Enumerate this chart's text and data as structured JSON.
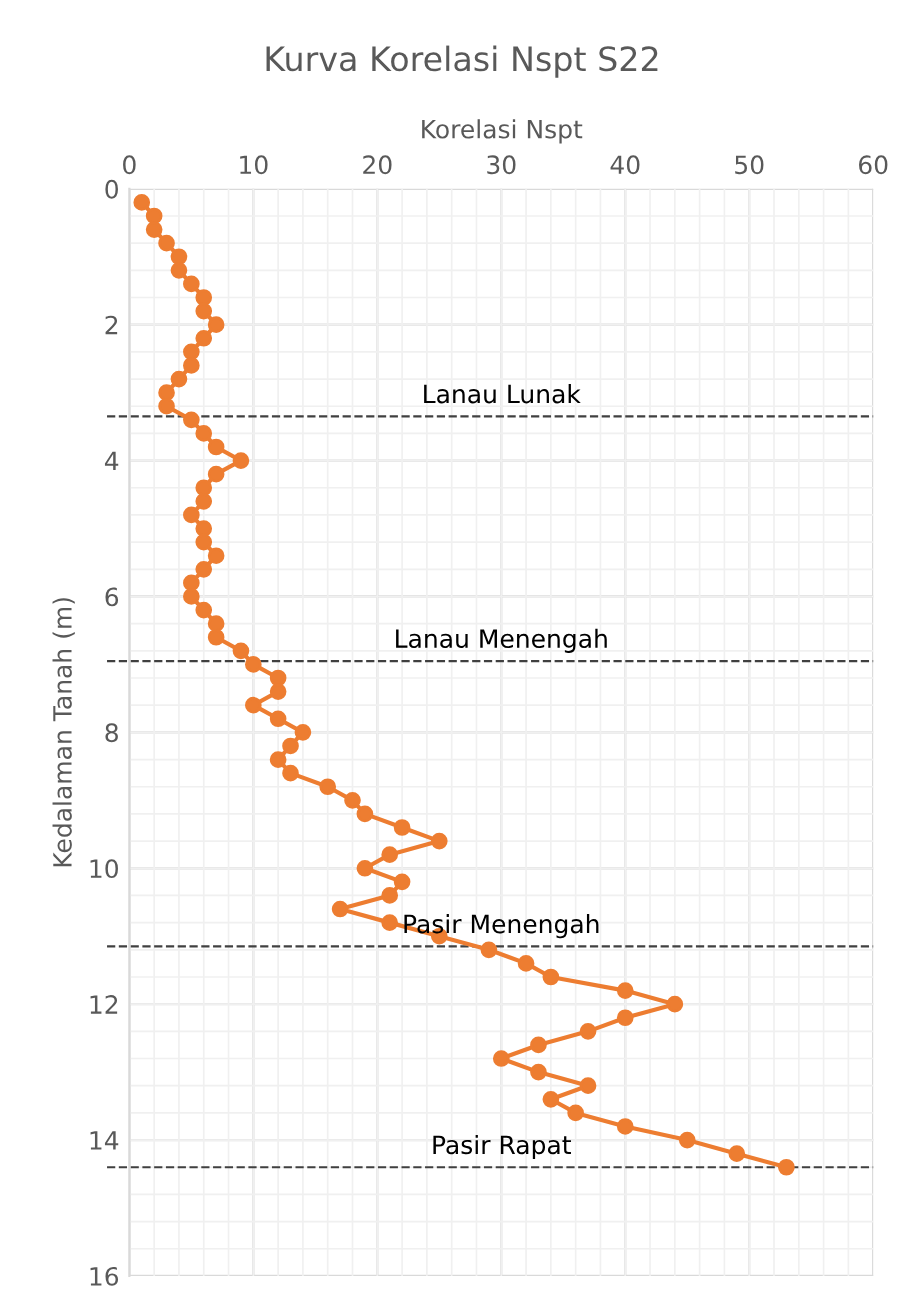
{
  "chart_data": {
    "type": "line",
    "title": "Kurva Korelasi Nspt S22",
    "xlabel": "Korelasi Nspt",
    "ylabel": "Kedalaman Tanah (m)",
    "x": [
      1,
      2,
      2,
      3,
      4,
      4,
      5,
      6,
      6,
      7,
      6,
      5,
      5,
      4,
      3,
      3,
      5,
      6,
      7,
      9,
      7,
      6,
      6,
      5,
      6,
      6,
      7,
      6,
      5,
      5,
      6,
      7,
      7,
      9,
      10,
      12,
      12,
      10,
      12,
      14,
      13,
      12,
      13,
      16,
      18,
      19,
      22,
      25,
      21,
      19,
      22,
      21,
      17,
      21,
      25,
      29,
      32,
      34,
      40,
      44,
      40,
      37,
      33,
      30,
      33,
      37,
      34,
      36,
      40,
      45,
      49,
      53
    ],
    "values": [
      0.2,
      0.4,
      0.6,
      0.8,
      1.0,
      1.2,
      1.4,
      1.6,
      1.8,
      2.0,
      2.2,
      2.4,
      2.6,
      2.8,
      3.0,
      3.2,
      3.4,
      3.6,
      3.8,
      4.0,
      4.2,
      4.4,
      4.6,
      4.8,
      5.0,
      5.2,
      5.4,
      5.6,
      5.8,
      6.0,
      6.2,
      6.4,
      6.6,
      6.8,
      7.0,
      7.2,
      7.4,
      7.6,
      7.8,
      8.0,
      8.2,
      8.4,
      8.6,
      8.8,
      9.0,
      9.2,
      9.4,
      9.6,
      9.8,
      10.0,
      10.2,
      10.4,
      10.6,
      10.8,
      11.0,
      11.2,
      11.4,
      11.6,
      11.8,
      12.0,
      12.2,
      12.4,
      12.6,
      12.8,
      13.0,
      13.2,
      13.4,
      13.6,
      13.8,
      14.0,
      14.2,
      14.4
    ],
    "color": "#ed7d31",
    "marker": "circle",
    "line_style": "solid",
    "xlim": [
      0,
      60
    ],
    "xticks": [
      0,
      10,
      20,
      30,
      40,
      50,
      60
    ],
    "ylim": [
      16,
      0
    ],
    "yticks": [
      0,
      2,
      4,
      6,
      8,
      10,
      12,
      14,
      16
    ],
    "grid": true,
    "ref_lines": [
      {
        "axis": "y",
        "value": 3.35,
        "label": "Lanau Lunak",
        "color": "#404040",
        "line_style": "dashed"
      },
      {
        "axis": "y",
        "value": 6.95,
        "label": "Lanau Menengah",
        "color": "#404040",
        "line_style": "dashed"
      },
      {
        "axis": "y",
        "value": 11.15,
        "label": "Pasir Menengah",
        "color": "#404040",
        "line_style": "dashed"
      },
      {
        "axis": "y",
        "value": 14.4,
        "label": "Pasir Rapat",
        "color": "#404040",
        "line_style": "dashed"
      }
    ]
  }
}
